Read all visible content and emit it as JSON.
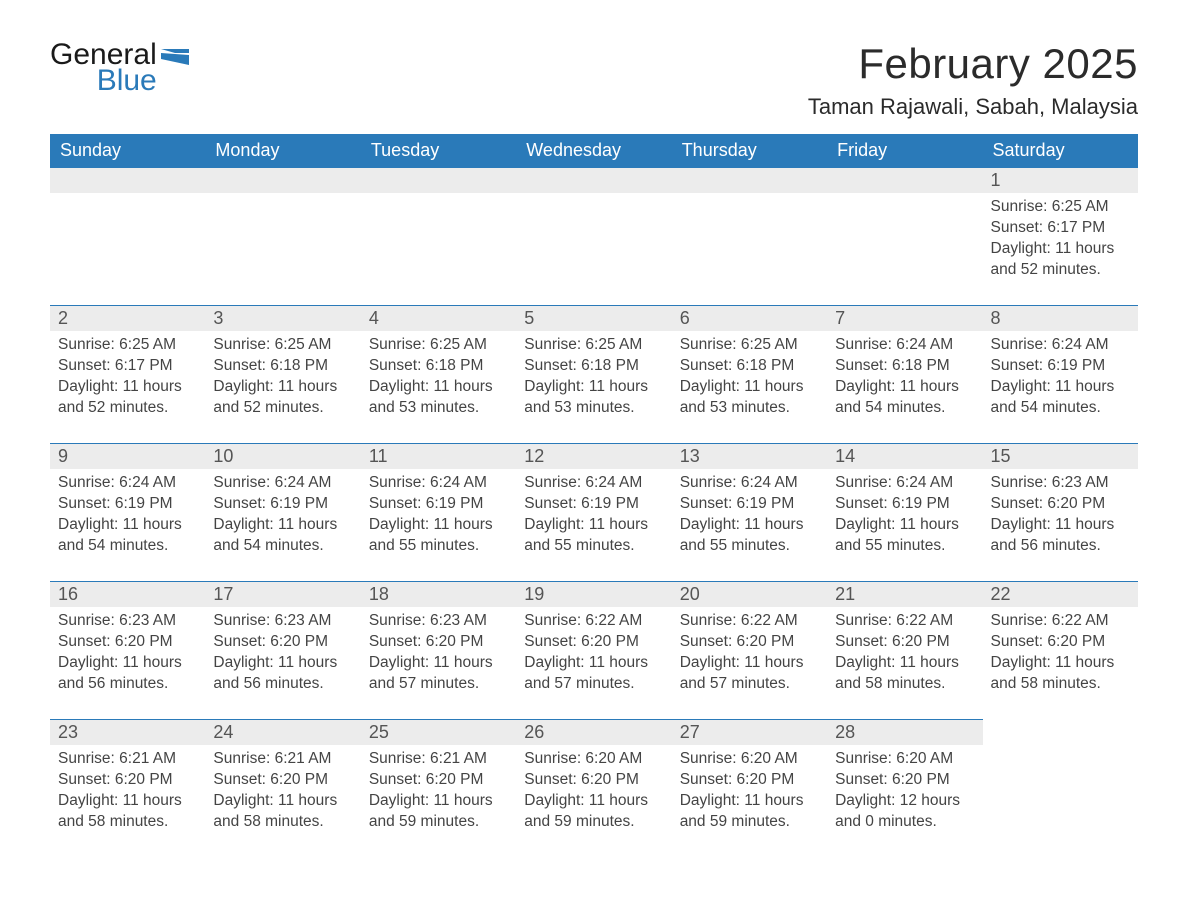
{
  "brand": {
    "word1": "General",
    "word2": "Blue"
  },
  "title": "February 2025",
  "location": "Taman Rajawali, Sabah, Malaysia",
  "colors": {
    "header_bg": "#2a7ab9",
    "header_text": "#ffffff",
    "daynum_bg": "#ececec",
    "daynum_border": "#2a7ab9",
    "body_text": "#444444",
    "title_text": "#2b2b2b",
    "page_bg": "#ffffff"
  },
  "weekdays": [
    "Sunday",
    "Monday",
    "Tuesday",
    "Wednesday",
    "Thursday",
    "Friday",
    "Saturday"
  ],
  "layout": {
    "columns": 7,
    "rows": 5,
    "first_day_column_index": 6,
    "days_in_month": 28
  },
  "days": [
    {
      "n": 1,
      "sunrise": "6:25 AM",
      "sunset": "6:17 PM",
      "daylight": "11 hours and 52 minutes."
    },
    {
      "n": 2,
      "sunrise": "6:25 AM",
      "sunset": "6:17 PM",
      "daylight": "11 hours and 52 minutes."
    },
    {
      "n": 3,
      "sunrise": "6:25 AM",
      "sunset": "6:18 PM",
      "daylight": "11 hours and 52 minutes."
    },
    {
      "n": 4,
      "sunrise": "6:25 AM",
      "sunset": "6:18 PM",
      "daylight": "11 hours and 53 minutes."
    },
    {
      "n": 5,
      "sunrise": "6:25 AM",
      "sunset": "6:18 PM",
      "daylight": "11 hours and 53 minutes."
    },
    {
      "n": 6,
      "sunrise": "6:25 AM",
      "sunset": "6:18 PM",
      "daylight": "11 hours and 53 minutes."
    },
    {
      "n": 7,
      "sunrise": "6:24 AM",
      "sunset": "6:18 PM",
      "daylight": "11 hours and 54 minutes."
    },
    {
      "n": 8,
      "sunrise": "6:24 AM",
      "sunset": "6:19 PM",
      "daylight": "11 hours and 54 minutes."
    },
    {
      "n": 9,
      "sunrise": "6:24 AM",
      "sunset": "6:19 PM",
      "daylight": "11 hours and 54 minutes."
    },
    {
      "n": 10,
      "sunrise": "6:24 AM",
      "sunset": "6:19 PM",
      "daylight": "11 hours and 54 minutes."
    },
    {
      "n": 11,
      "sunrise": "6:24 AM",
      "sunset": "6:19 PM",
      "daylight": "11 hours and 55 minutes."
    },
    {
      "n": 12,
      "sunrise": "6:24 AM",
      "sunset": "6:19 PM",
      "daylight": "11 hours and 55 minutes."
    },
    {
      "n": 13,
      "sunrise": "6:24 AM",
      "sunset": "6:19 PM",
      "daylight": "11 hours and 55 minutes."
    },
    {
      "n": 14,
      "sunrise": "6:24 AM",
      "sunset": "6:19 PM",
      "daylight": "11 hours and 55 minutes."
    },
    {
      "n": 15,
      "sunrise": "6:23 AM",
      "sunset": "6:20 PM",
      "daylight": "11 hours and 56 minutes."
    },
    {
      "n": 16,
      "sunrise": "6:23 AM",
      "sunset": "6:20 PM",
      "daylight": "11 hours and 56 minutes."
    },
    {
      "n": 17,
      "sunrise": "6:23 AM",
      "sunset": "6:20 PM",
      "daylight": "11 hours and 56 minutes."
    },
    {
      "n": 18,
      "sunrise": "6:23 AM",
      "sunset": "6:20 PM",
      "daylight": "11 hours and 57 minutes."
    },
    {
      "n": 19,
      "sunrise": "6:22 AM",
      "sunset": "6:20 PM",
      "daylight": "11 hours and 57 minutes."
    },
    {
      "n": 20,
      "sunrise": "6:22 AM",
      "sunset": "6:20 PM",
      "daylight": "11 hours and 57 minutes."
    },
    {
      "n": 21,
      "sunrise": "6:22 AM",
      "sunset": "6:20 PM",
      "daylight": "11 hours and 58 minutes."
    },
    {
      "n": 22,
      "sunrise": "6:22 AM",
      "sunset": "6:20 PM",
      "daylight": "11 hours and 58 minutes."
    },
    {
      "n": 23,
      "sunrise": "6:21 AM",
      "sunset": "6:20 PM",
      "daylight": "11 hours and 58 minutes."
    },
    {
      "n": 24,
      "sunrise": "6:21 AM",
      "sunset": "6:20 PM",
      "daylight": "11 hours and 58 minutes."
    },
    {
      "n": 25,
      "sunrise": "6:21 AM",
      "sunset": "6:20 PM",
      "daylight": "11 hours and 59 minutes."
    },
    {
      "n": 26,
      "sunrise": "6:20 AM",
      "sunset": "6:20 PM",
      "daylight": "11 hours and 59 minutes."
    },
    {
      "n": 27,
      "sunrise": "6:20 AM",
      "sunset": "6:20 PM",
      "daylight": "11 hours and 59 minutes."
    },
    {
      "n": 28,
      "sunrise": "6:20 AM",
      "sunset": "6:20 PM",
      "daylight": "12 hours and 0 minutes."
    }
  ],
  "labels": {
    "sunrise": "Sunrise:",
    "sunset": "Sunset:",
    "daylight": "Daylight:"
  }
}
